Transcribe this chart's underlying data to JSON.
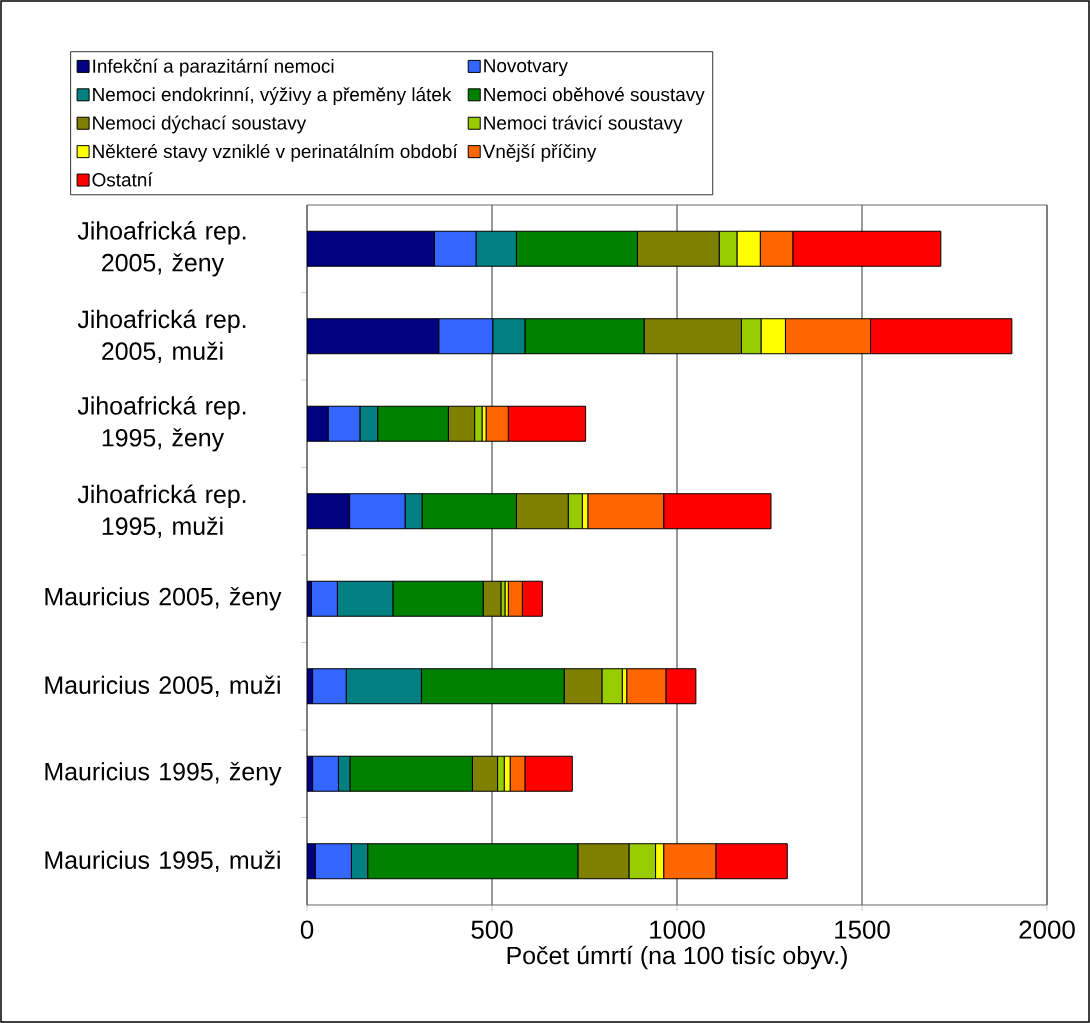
{
  "chart_data": {
    "type": "bar",
    "orientation": "horizontal",
    "stacked": true,
    "categories": [
      "Jihoafrická rep. 2005, ženy",
      "Jihoafrická rep. 2005, muži",
      "Jihoafrická rep. 1995, ženy",
      "Jihoafrická rep. 1995, muži",
      "Mauricius 2005, ženy",
      "Mauricius 2005, muži",
      "Mauricius 1995, ženy",
      "Mauricius 1995, muži"
    ],
    "xlabel": "Počet úmrtí (na 100 tisíc obyv.)",
    "xlim": [
      0,
      2000
    ],
    "xticks": [
      0,
      500,
      1000,
      1500,
      2000
    ],
    "grid": "x",
    "legend": "top",
    "series": [
      {
        "name": "Infekční a parazitární nemoci",
        "color": "#000080",
        "values": [
          344,
          356,
          57,
          115,
          12,
          15,
          15,
          22
        ]
      },
      {
        "name": "Novotvary",
        "color": "#3366ff",
        "values": [
          113,
          146,
          86,
          150,
          70,
          91,
          70,
          98
        ]
      },
      {
        "name": "Nemoci endokrinní, výživy a přeměny látek",
        "color": "#008080",
        "values": [
          109,
          87,
          48,
          46,
          150,
          203,
          31,
          44
        ]
      },
      {
        "name": "Nemoci oběhové soustavy",
        "color": "#008000",
        "values": [
          327,
          322,
          191,
          255,
          244,
          386,
          331,
          568
        ]
      },
      {
        "name": "Nemoci dýchací soustavy",
        "color": "#808000",
        "values": [
          221,
          263,
          71,
          140,
          48,
          102,
          68,
          138
        ]
      },
      {
        "name": "Nemoci trávicí soustavy",
        "color": "#99cc00",
        "values": [
          48,
          53,
          20,
          38,
          11,
          55,
          18,
          72
        ]
      },
      {
        "name": "Některé stavy vzniklé v perinatálním období",
        "color": "#ffff00",
        "values": [
          63,
          66,
          11,
          15,
          9,
          12,
          16,
          22
        ]
      },
      {
        "name": "Vnější příčiny",
        "color": "#ff6600",
        "values": [
          88,
          230,
          60,
          205,
          38,
          106,
          40,
          141
        ]
      },
      {
        "name": "Ostatní",
        "color": "#ff0000",
        "values": [
          400,
          382,
          209,
          290,
          54,
          81,
          128,
          193
        ]
      }
    ]
  }
}
